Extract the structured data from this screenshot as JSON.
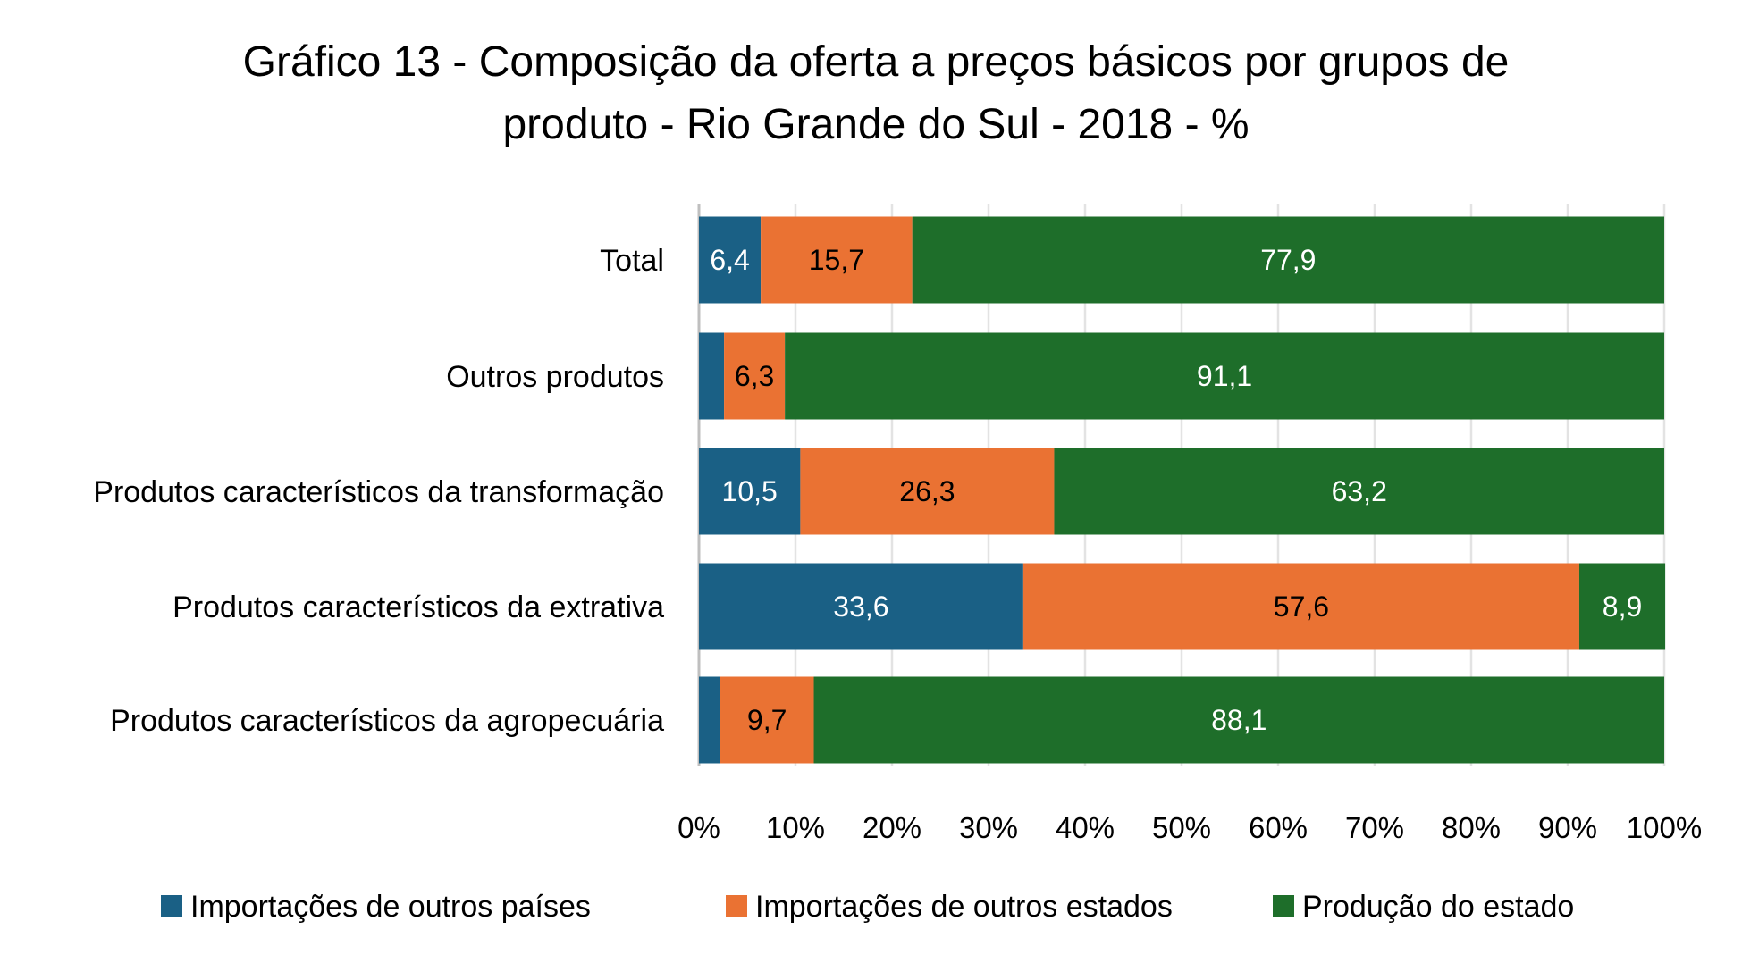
{
  "chart_data": {
    "type": "bar",
    "orientation": "horizontal",
    "stacked": "percent",
    "title": "Gráfico 13 - Composição da oferta a preços básicos por grupos de produto - Rio Grande do Sul - 2018 - %",
    "title_lines": [
      "Gráfico 13 - Composição da oferta a preços básicos por grupos de",
      "produto - Rio Grande do Sul - 2018 - %"
    ],
    "xlabel": "",
    "ylabel": "",
    "xlim": [
      0,
      100
    ],
    "x_ticks": [
      "0%",
      "10%",
      "20%",
      "30%",
      "40%",
      "50%",
      "60%",
      "70%",
      "80%",
      "90%",
      "100%"
    ],
    "grid": true,
    "legend_position": "bottom",
    "categories": [
      "Total",
      "Outros produtos",
      "Produtos característicos da transformação",
      "Produtos característicos da extrativa",
      "Produtos característicos da agropecuária"
    ],
    "series": [
      {
        "name": "Importações de outros países",
        "color": "#1a6085",
        "label_color": "#ffffff",
        "values": [
          6.4,
          2.6,
          10.5,
          33.6,
          2.2
        ],
        "labels": [
          "6,4",
          "",
          "10,5",
          "33,6",
          ""
        ]
      },
      {
        "name": "Importações de outros estados",
        "color": "#ea7233",
        "label_color": "#000000",
        "values": [
          15.7,
          6.3,
          26.3,
          57.6,
          9.7
        ],
        "labels": [
          "15,7",
          "6,3",
          "26,3",
          "57,6",
          "9,7"
        ]
      },
      {
        "name": "Produção do estado",
        "color": "#1e6e2a",
        "label_color": "#ffffff",
        "values": [
          77.9,
          91.1,
          63.2,
          8.9,
          88.1
        ],
        "labels": [
          "77,9",
          "91,1",
          "63,2",
          "8,9",
          "88,1"
        ]
      }
    ]
  }
}
